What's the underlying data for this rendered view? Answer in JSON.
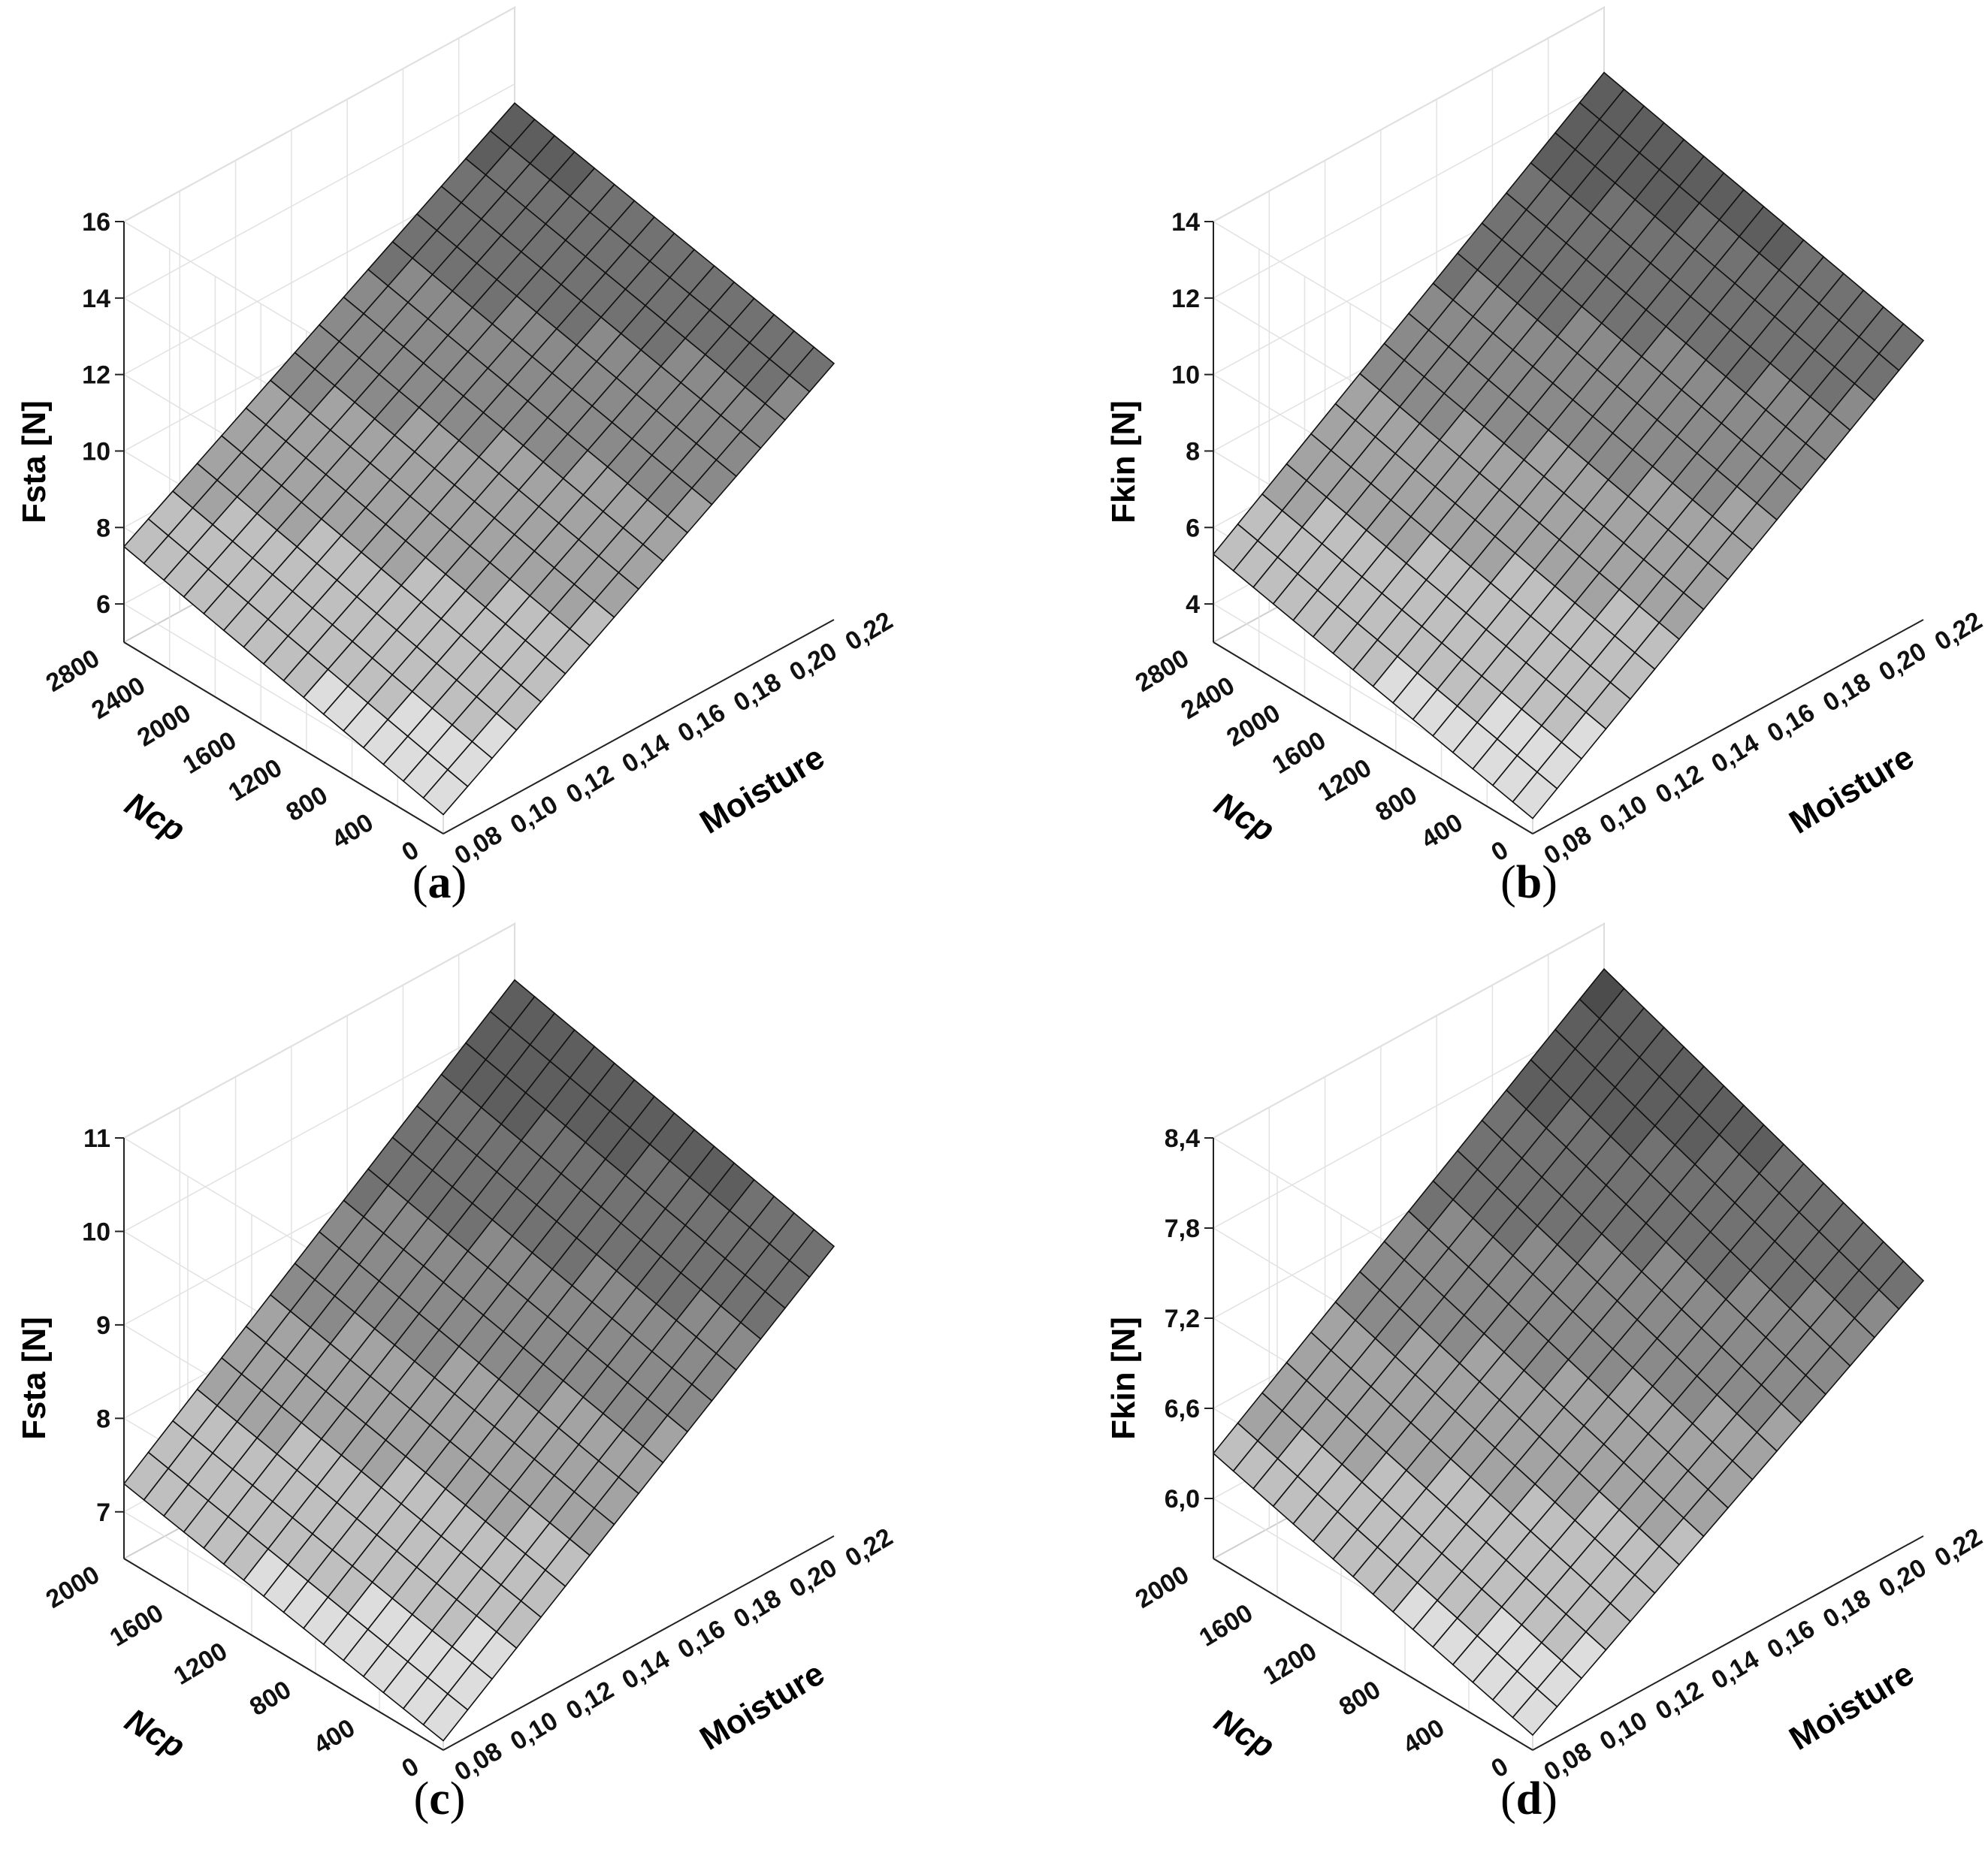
{
  "figure": {
    "panels": [
      {
        "id": "a",
        "label_open": "(",
        "label_letter": "a",
        "label_close": ")"
      },
      {
        "id": "b",
        "label_open": "(",
        "label_letter": "b",
        "label_close": ")"
      },
      {
        "id": "c",
        "label_open": "(",
        "label_letter": "c",
        "label_close": ")"
      },
      {
        "id": "d",
        "label_open": "(",
        "label_letter": "d",
        "label_close": ")"
      }
    ]
  },
  "chart_data": [
    {
      "type": "surface3d",
      "panel": "a",
      "zlabel": "Fsta [N]",
      "xlabel": "Moisture",
      "ylabel": "Ncp",
      "x_ticks": [
        "0,08",
        "0,10",
        "0,12",
        "0,14",
        "0,16",
        "0,18",
        "0,20",
        "0,22"
      ],
      "y_ticks": [
        "0",
        "400",
        "800",
        "1200",
        "1600",
        "2000",
        "2400",
        "2800"
      ],
      "z_ticks": [
        "6",
        "8",
        "10",
        "12",
        "14",
        "16"
      ],
      "xlim": [
        0.08,
        0.22
      ],
      "ylim": [
        0,
        2800
      ],
      "zlim": [
        5,
        16
      ],
      "corners": [
        {
          "moisture": 0.08,
          "Ncp": 0,
          "F": 5.5
        },
        {
          "moisture": 0.22,
          "Ncp": 0,
          "F": 11.7
        },
        {
          "moisture": 0.08,
          "Ncp": 2800,
          "F": 7.5
        },
        {
          "moisture": 0.22,
          "Ncp": 2800,
          "F": 13.5
        }
      ]
    },
    {
      "type": "surface3d",
      "panel": "b",
      "zlabel": "Fkin [N]",
      "xlabel": "Moisture",
      "ylabel": "Ncp",
      "x_ticks": [
        "0,08",
        "0,10",
        "0,12",
        "0,14",
        "0,16",
        "0,18",
        "0,20",
        "0,22"
      ],
      "y_ticks": [
        "0",
        "400",
        "800",
        "1200",
        "1600",
        "2000",
        "2400",
        "2800"
      ],
      "z_ticks": [
        "4",
        "6",
        "8",
        "10",
        "12",
        "14"
      ],
      "xlim": [
        0.08,
        0.22
      ],
      "ylim": [
        0,
        2800
      ],
      "zlim": [
        3,
        14
      ],
      "corners": [
        {
          "moisture": 0.08,
          "Ncp": 0,
          "F": 3.4
        },
        {
          "moisture": 0.22,
          "Ncp": 0,
          "F": 10.3
        },
        {
          "moisture": 0.08,
          "Ncp": 2800,
          "F": 5.3
        },
        {
          "moisture": 0.22,
          "Ncp": 2800,
          "F": 12.3
        }
      ]
    },
    {
      "type": "surface3d",
      "panel": "c",
      "zlabel": "Fsta [N]",
      "xlabel": "Moisture",
      "ylabel": "Ncp",
      "x_ticks": [
        "0,08",
        "0,10",
        "0,12",
        "0,14",
        "0,16",
        "0,18",
        "0,20",
        "0,22"
      ],
      "y_ticks": [
        "0",
        "400",
        "800",
        "1200",
        "1600",
        "2000"
      ],
      "z_ticks": [
        "7",
        "8",
        "9",
        "10",
        "11"
      ],
      "xlim": [
        0.08,
        0.22
      ],
      "ylim": [
        0,
        2000
      ],
      "zlim": [
        6.5,
        11
      ],
      "corners": [
        {
          "moisture": 0.08,
          "Ncp": 0,
          "F": 6.6
        },
        {
          "moisture": 0.22,
          "Ncp": 0,
          "F": 9.6
        },
        {
          "moisture": 0.08,
          "Ncp": 2000,
          "F": 7.3
        },
        {
          "moisture": 0.22,
          "Ncp": 2000,
          "F": 10.4
        }
      ]
    },
    {
      "type": "surface3d",
      "panel": "d",
      "zlabel": "Fkin [N]",
      "xlabel": "Moisture",
      "ylabel": "Ncp",
      "x_ticks": [
        "0,08",
        "0,10",
        "0,12",
        "0,14",
        "0,16",
        "0,18",
        "0,20",
        "0,22"
      ],
      "y_ticks": [
        "0",
        "400",
        "800",
        "1200",
        "1600",
        "2000"
      ],
      "z_ticks": [
        "6,0",
        "6,6",
        "7,2",
        "7,8",
        "8,4"
      ],
      "xlim": [
        0.08,
        0.22
      ],
      "ylim": [
        0,
        2000
      ],
      "zlim": [
        5.6,
        8.4
      ],
      "corners": [
        {
          "moisture": 0.08,
          "Ncp": 0,
          "F": 5.7
        },
        {
          "moisture": 0.22,
          "Ncp": 0,
          "F": 7.3
        },
        {
          "moisture": 0.08,
          "Ncp": 2000,
          "F": 6.3
        },
        {
          "moisture": 0.22,
          "Ncp": 2000,
          "F": 8.1
        }
      ]
    }
  ]
}
